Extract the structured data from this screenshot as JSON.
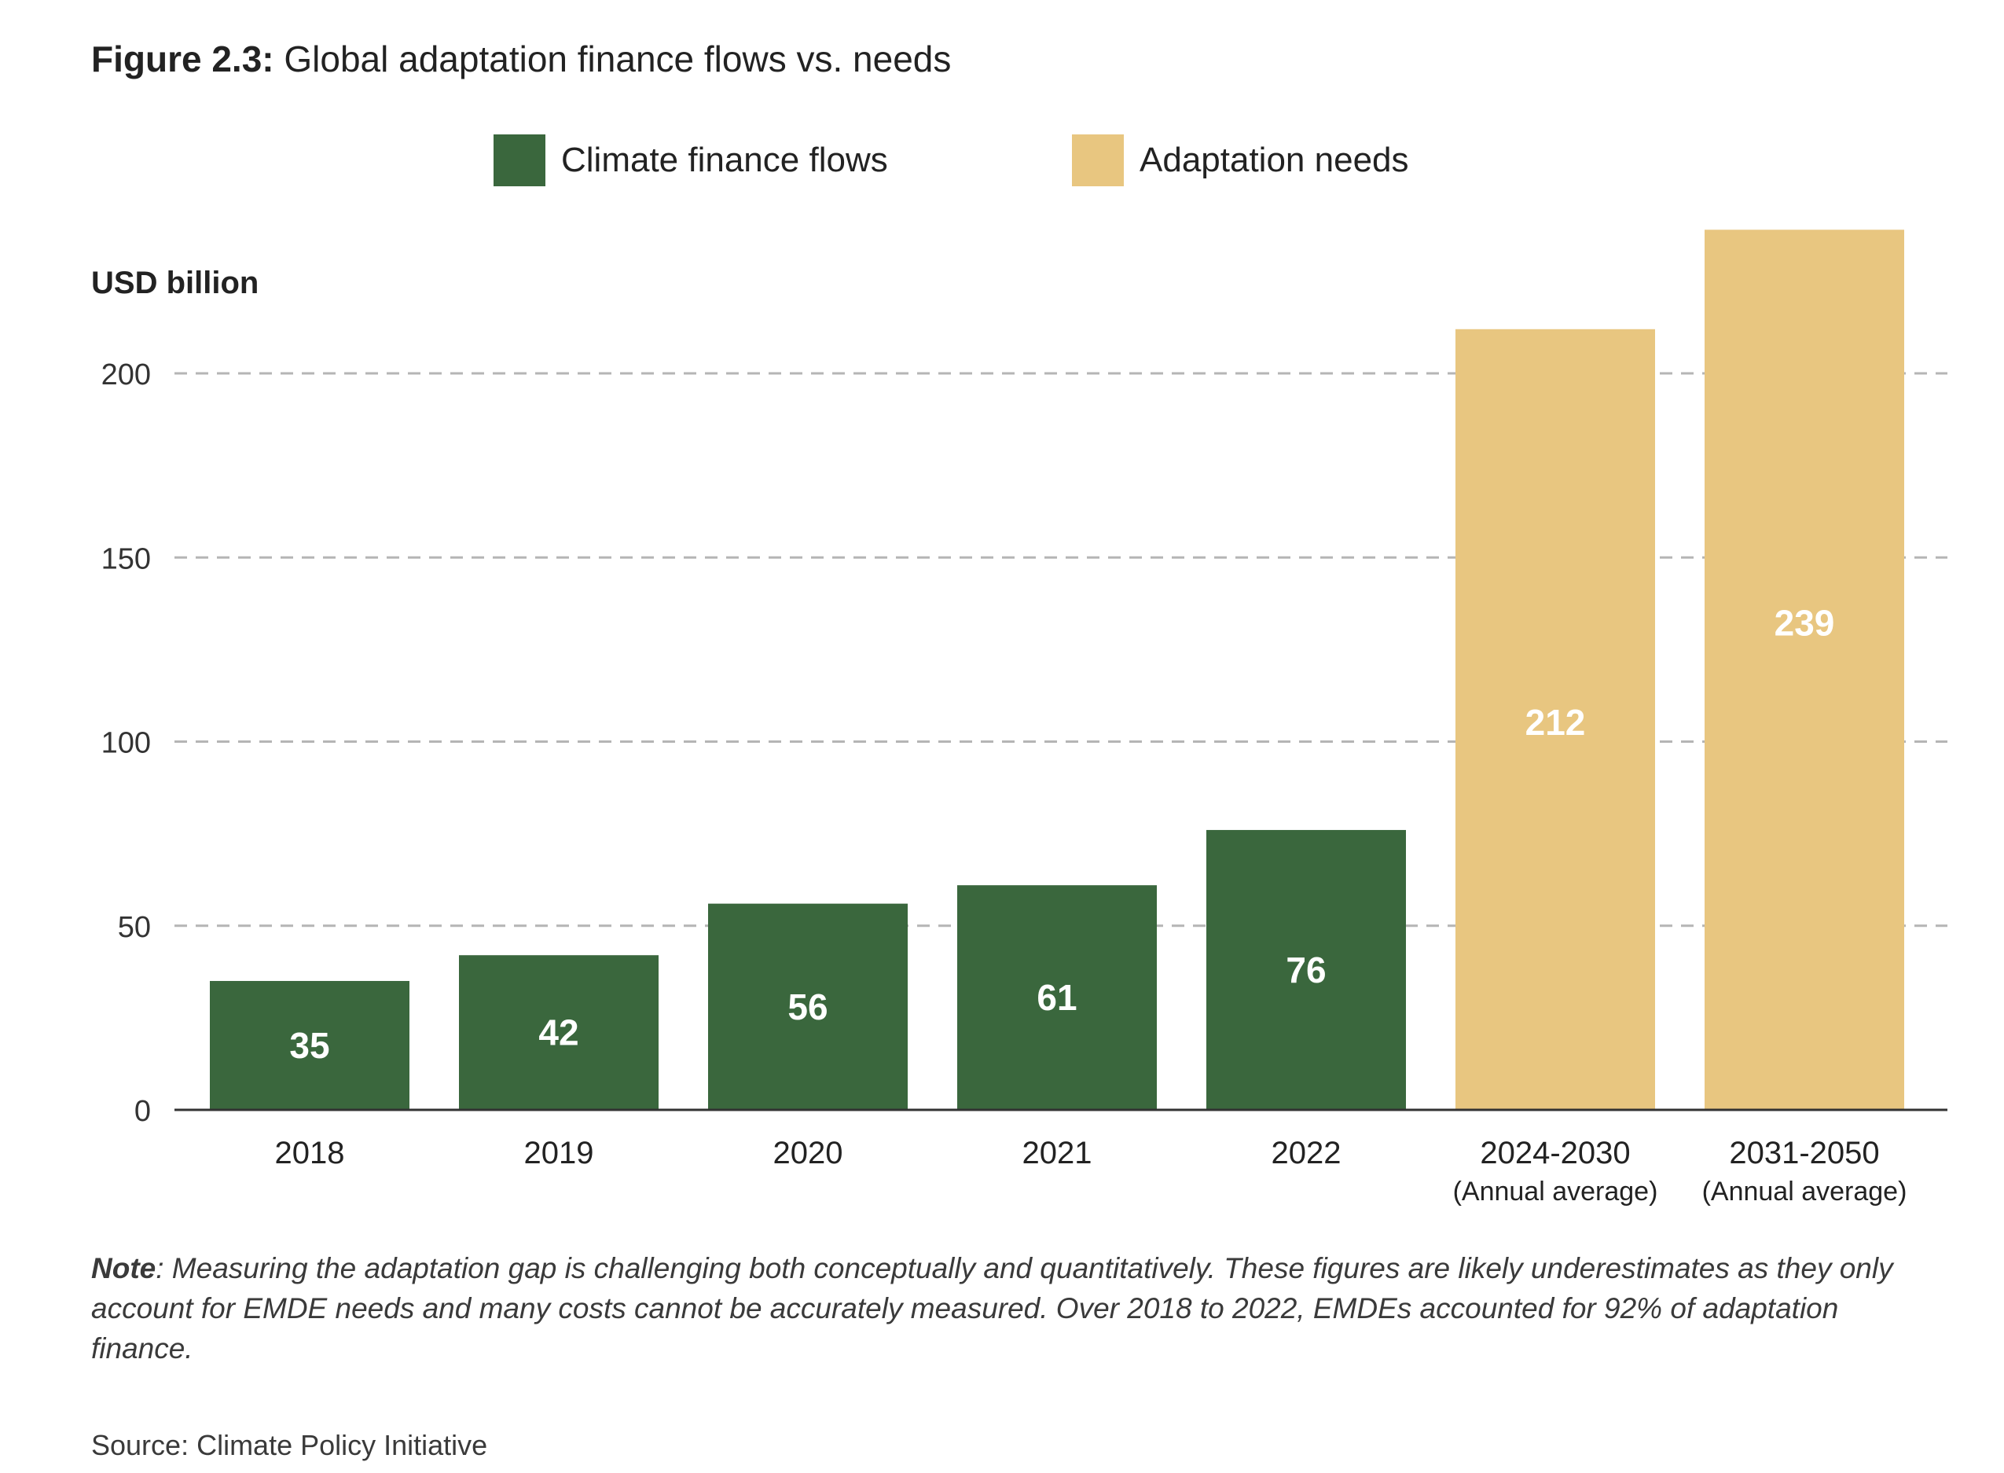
{
  "figure": {
    "label": "Figure 2.3:",
    "title": "Global adaptation finance flows vs. needs"
  },
  "legend": [
    {
      "label": "Climate finance flows",
      "color": "#3a673d"
    },
    {
      "label": "Adaptation needs",
      "color": "#e8c680"
    }
  ],
  "chart_data": {
    "type": "bar",
    "ylabel": "USD billion",
    "ylim": [
      0,
      250
    ],
    "yticks": [
      0,
      50,
      100,
      150,
      200
    ],
    "grid": "horizontal dashed",
    "legend_position": "top-center",
    "categories": [
      {
        "label": "2018",
        "sublabel": ""
      },
      {
        "label": "2019",
        "sublabel": ""
      },
      {
        "label": "2020",
        "sublabel": ""
      },
      {
        "label": "2021",
        "sublabel": ""
      },
      {
        "label": "2022",
        "sublabel": ""
      },
      {
        "label": "2024-2030",
        "sublabel": "(Annual average)"
      },
      {
        "label": "2031-2050",
        "sublabel": "(Annual average)"
      }
    ],
    "series": [
      {
        "name": "Climate finance flows",
        "color": "#3a673d",
        "values": [
          35,
          42,
          56,
          61,
          76,
          null,
          null
        ]
      },
      {
        "name": "Adaptation needs",
        "color": "#e8c680",
        "values": [
          null,
          null,
          null,
          null,
          null,
          212,
          239
        ]
      }
    ]
  },
  "note": {
    "label": "Note",
    "text": ": Measuring the adaptation gap is challenging both conceptually and quantitatively. These figures are likely underestimates as they only account for EMDE needs and many costs cannot be accurately measured. Over 2018 to 2022, EMDEs accounted for 92% of adaptation finance."
  },
  "source": "Source: Climate Policy Initiative"
}
